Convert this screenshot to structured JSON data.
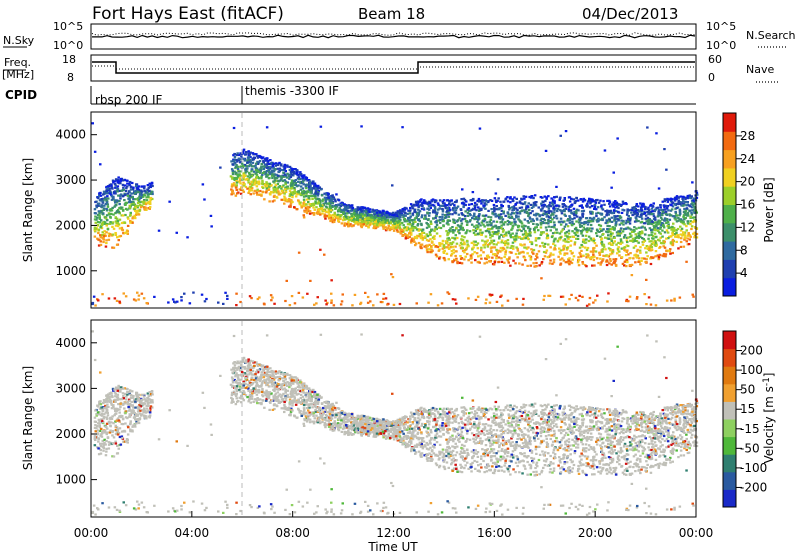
{
  "header": {
    "title": "Fort Hays East (fitACF)",
    "beam": "Beam 18",
    "date": "04/Dec/2013"
  },
  "top_panels": {
    "nsky_label": "N.Sky",
    "nsky_ticks": [
      "10^5",
      "10^0"
    ],
    "nsearch_label": "N.Search",
    "nsearch_ticks": [
      "10^5",
      "10^0"
    ],
    "freq_label_1": "Freq.",
    "freq_label_2": "[MHz]",
    "freq_ticks": [
      "18",
      "8"
    ],
    "nave_label": "Nave",
    "nave_ticks": [
      "60",
      "0"
    ],
    "cpid_label": "CPID",
    "cpid_segments": [
      {
        "label": "rbsp 200 IF",
        "start_hour": 0
      },
      {
        "label": "themis -3300 IF",
        "start_hour": 6
      }
    ]
  },
  "chart_data": [
    {
      "type": "heatmap",
      "panel": "power",
      "xlabel": "Time UT",
      "ylabel": "Slant Range [km]",
      "xticks": [
        "00:00",
        "04:00",
        "08:00",
        "12:00",
        "16:00",
        "20:00",
        "00:00"
      ],
      "yticks": [
        1000,
        2000,
        3000,
        4000
      ],
      "ylim": [
        180,
        4500
      ],
      "xlim_hours": [
        0,
        24
      ],
      "colorbar_label": "Power [dB]",
      "colorbar_ticks": [
        4,
        8,
        12,
        16,
        20,
        24,
        28
      ],
      "colorbar_colors": [
        "#0a1ee0",
        "#1f3fb0",
        "#2f6aa0",
        "#3c8f6a",
        "#4fb04a",
        "#9ccf2a",
        "#f0d020",
        "#f7a020",
        "#f26a10",
        "#e01a0a"
      ],
      "scatter_band": [
        {
          "hour": 0.0,
          "inner_km": 1600,
          "outer_km": 2600
        },
        {
          "hour": 1.0,
          "inner_km": 1500,
          "outer_km": 3100
        },
        {
          "hour": 2.0,
          "inner_km": 2300,
          "outer_km": 2900
        },
        {
          "hour": 6.0,
          "inner_km": 2700,
          "outer_km": 3700
        },
        {
          "hour": 8.0,
          "inner_km": 2400,
          "outer_km": 3300
        },
        {
          "hour": 10.0,
          "inner_km": 2000,
          "outer_km": 2500
        },
        {
          "hour": 12.0,
          "inner_km": 1900,
          "outer_km": 2300
        },
        {
          "hour": 13.0,
          "inner_km": 1500,
          "outer_km": 2600
        },
        {
          "hour": 14.0,
          "inner_km": 1200,
          "outer_km": 2600
        },
        {
          "hour": 18.0,
          "inner_km": 1100,
          "outer_km": 2700
        },
        {
          "hour": 22.0,
          "inner_km": 1100,
          "outer_km": 2500
        },
        {
          "hour": 24.0,
          "inner_km": 1700,
          "outer_km": 2800
        }
      ]
    },
    {
      "type": "heatmap",
      "panel": "velocity",
      "xlabel": "Time UT",
      "ylabel": "Slant Range [km]",
      "xticks": [
        "00:00",
        "04:00",
        "08:00",
        "12:00",
        "16:00",
        "20:00",
        "00:00"
      ],
      "yticks": [
        1000,
        2000,
        3000,
        4000
      ],
      "ylim": [
        180,
        4500
      ],
      "xlim_hours": [
        0,
        24
      ],
      "colorbar_label": "Velocity [m s-1]",
      "colorbar_ticks": [
        "200",
        "100",
        "50",
        "15",
        "-15",
        "-50",
        "-100",
        "-200"
      ],
      "colorbar_colors": [
        "#1a2ac8",
        "#2a5aa0",
        "#2f7f70",
        "#4fb83a",
        "#8ed060",
        "#c0c0b8",
        "#f0a030",
        "#e07a10",
        "#e04a10",
        "#d01010"
      ],
      "dominant_color": "#c0c0b8"
    }
  ]
}
